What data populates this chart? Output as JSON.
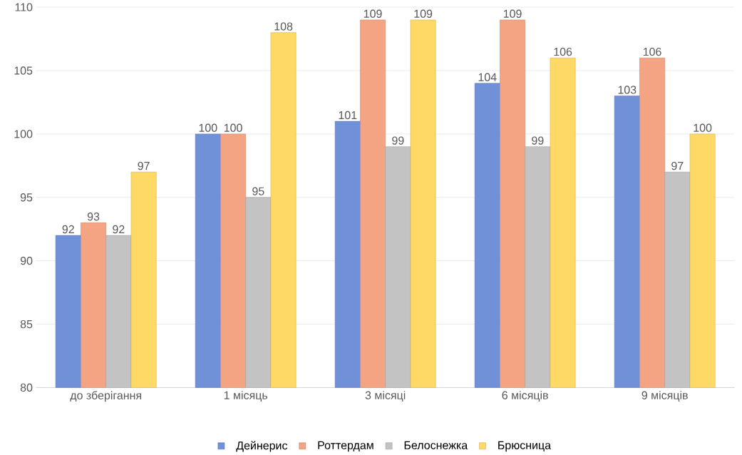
{
  "chart_data": {
    "type": "bar",
    "categories": [
      "до зберігання",
      "1 місяць",
      "3 місяці",
      "6 місяців",
      "9 місяців"
    ],
    "series": [
      {
        "name": "Дейнерис",
        "color": "#7090d8",
        "values": [
          92,
          100,
          101,
          104,
          103
        ]
      },
      {
        "name": "Роттердам",
        "color": "#f4a383",
        "values": [
          93,
          100,
          109,
          109,
          106
        ]
      },
      {
        "name": "Белоснежка",
        "color": "#c3c3c3",
        "values": [
          92,
          95,
          99,
          99,
          97
        ]
      },
      {
        "name": "Брюсница",
        "color": "#ffd966",
        "values": [
          97,
          108,
          109,
          106,
          100
        ]
      }
    ],
    "ylim": [
      80,
      110
    ],
    "yticks": [
      80,
      85,
      90,
      95,
      100,
      105,
      110
    ],
    "grid": "y",
    "legend": "bottom",
    "data_labels": true
  }
}
